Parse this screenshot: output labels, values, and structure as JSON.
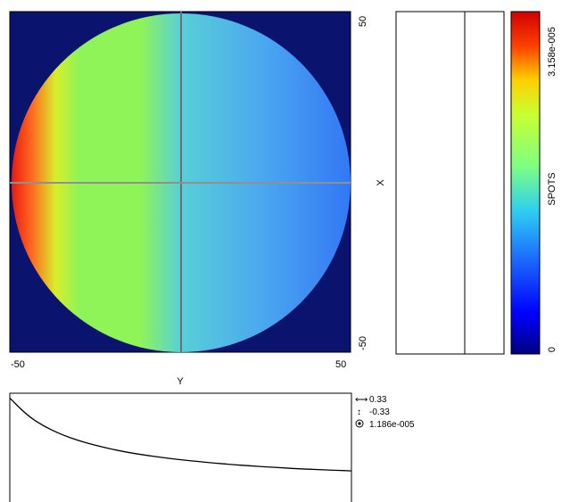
{
  "chart_data": [
    {
      "type": "heatmap",
      "xlabel": "Y",
      "ylabel": "X",
      "xlim": [
        -50,
        50
      ],
      "ylim": [
        -50,
        50
      ],
      "x_tick_labels": [
        "-50",
        "50"
      ],
      "y_tick_labels": [
        "50",
        "-50"
      ],
      "crosshair": {
        "y_position": 0,
        "x_position": 0
      },
      "field_shape": "circle",
      "field_radius": 50,
      "field_description_gradient": [
        {
          "y": -50,
          "value": 3.158e-05
        },
        {
          "y": -37,
          "value": 2.2e-05
        },
        {
          "y": -20,
          "value": 1.7e-05
        },
        {
          "y": 0,
          "value": 1.3e-05
        },
        {
          "y": 25,
          "value": 1e-05
        },
        {
          "y": 50,
          "value": 7e-06
        }
      ]
    },
    {
      "type": "colorbar",
      "label": "SPOTS",
      "min": 0,
      "max": 3.158e-05,
      "min_label": "0",
      "max_label": "3.158e-005",
      "colors": [
        "#00007f",
        "#0000ff",
        "#0080ff",
        "#00ffff",
        "#80ff80",
        "#ffff00",
        "#ff8000",
        "#ff0000",
        "#7f0000"
      ]
    },
    {
      "type": "line",
      "description": "cross-section profile",
      "x": [
        -50,
        -45,
        -40,
        -35,
        -30,
        -25,
        -20,
        -15,
        -10,
        -5,
        0,
        5,
        10,
        15,
        20,
        25,
        30,
        35,
        40,
        45,
        50
      ],
      "y": [
        3.158e-05,
        2.65e-05,
        2.32e-05,
        2.08e-05,
        1.9e-05,
        1.76e-05,
        1.64e-05,
        1.54e-05,
        1.46e-05,
        1.39e-05,
        1.33e-05,
        1.28e-05,
        1.23e-05,
        1.19e-05,
        1.15e-05,
        1.12e-05,
        1.09e-05,
        1.06e-05,
        1.04e-05,
        1.02e-05,
        1e-05
      ],
      "ylim": [
        0,
        3.3e-05
      ],
      "readout": {
        "horizontal": "0.33",
        "vertical": "-0.33",
        "value": "1.186e-005"
      }
    }
  ]
}
